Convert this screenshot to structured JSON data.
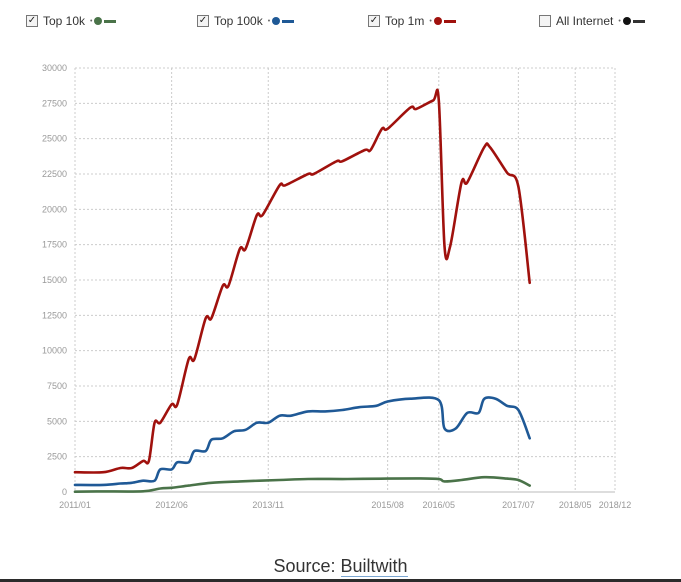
{
  "legend": [
    {
      "label": "Top 10k",
      "checked": true,
      "color": "#4a7349"
    },
    {
      "label": "Top 100k",
      "checked": true,
      "color": "#1f5996"
    },
    {
      "label": "Top 1m",
      "checked": true,
      "color": "#a0110d"
    },
    {
      "label": "All Internet",
      "checked": false,
      "color": "#333333"
    }
  ],
  "source": {
    "prefix": "Source:",
    "link": "Builtwith"
  },
  "chart_data": {
    "type": "line",
    "ylim": [
      0,
      30000
    ],
    "yticks": [
      "0",
      "2500",
      "5000",
      "7500",
      "10000",
      "12500",
      "15000",
      "17500",
      "20000",
      "22500",
      "25000",
      "27500",
      "30000"
    ],
    "xticks": [
      "2011/01",
      "2012/06",
      "2013/11",
      "2015/08",
      "2016/05",
      "2017/07",
      "2018/05",
      "2018/12"
    ],
    "grid": true,
    "series": [
      {
        "name": "Top 1m",
        "color": "#a0110d",
        "points": [
          [
            "2011/01",
            1400
          ],
          [
            "2011/06",
            1400
          ],
          [
            "2011/09",
            1700
          ],
          [
            "2011/11",
            1700
          ],
          [
            "2012/01",
            2200
          ],
          [
            "2012/02",
            2200
          ],
          [
            "2012/03",
            4900
          ],
          [
            "2012/04",
            4900
          ],
          [
            "2012/06",
            6200
          ],
          [
            "2012/07",
            6200
          ],
          [
            "2012/09",
            9400
          ],
          [
            "2012/10",
            9400
          ],
          [
            "2012/12",
            12300
          ],
          [
            "2013/01",
            12300
          ],
          [
            "2013/03",
            14600
          ],
          [
            "2013/04",
            14600
          ],
          [
            "2013/06",
            17200
          ],
          [
            "2013/07",
            17200
          ],
          [
            "2013/09",
            19600
          ],
          [
            "2013/10",
            19600
          ],
          [
            "2014/01",
            21700
          ],
          [
            "2014/02",
            21700
          ],
          [
            "2014/06",
            22500
          ],
          [
            "2014/07",
            22500
          ],
          [
            "2014/11",
            23400
          ],
          [
            "2014/12",
            23400
          ],
          [
            "2015/04",
            24200
          ],
          [
            "2015/05",
            24200
          ],
          [
            "2015/07",
            25700
          ],
          [
            "2015/08",
            25700
          ],
          [
            "2015/12",
            27200
          ],
          [
            "2016/01",
            27100
          ],
          [
            "2016/04",
            27700
          ],
          [
            "2016/05",
            27700
          ],
          [
            "2016/06",
            17400
          ],
          [
            "2016/07",
            17400
          ],
          [
            "2016/09",
            21900
          ],
          [
            "2016/10",
            21900
          ],
          [
            "2017/01",
            24400
          ],
          [
            "2017/02",
            24400
          ],
          [
            "2017/05",
            22600
          ],
          [
            "2017/07",
            21600
          ],
          [
            "2017/09",
            14800
          ]
        ]
      },
      {
        "name": "Top 100k",
        "color": "#1f5996",
        "points": [
          [
            "2011/01",
            500
          ],
          [
            "2011/06",
            500
          ],
          [
            "2011/09",
            600
          ],
          [
            "2011/11",
            650
          ],
          [
            "2012/01",
            800
          ],
          [
            "2012/03",
            800
          ],
          [
            "2012/04",
            1600
          ],
          [
            "2012/06",
            1600
          ],
          [
            "2012/07",
            2100
          ],
          [
            "2012/09",
            2100
          ],
          [
            "2012/10",
            2900
          ],
          [
            "2012/12",
            2900
          ],
          [
            "2013/01",
            3700
          ],
          [
            "2013/03",
            3800
          ],
          [
            "2013/05",
            4300
          ],
          [
            "2013/07",
            4400
          ],
          [
            "2013/09",
            4900
          ],
          [
            "2013/11",
            4900
          ],
          [
            "2014/01",
            5400
          ],
          [
            "2014/03",
            5400
          ],
          [
            "2014/06",
            5700
          ],
          [
            "2014/09",
            5700
          ],
          [
            "2014/12",
            5800
          ],
          [
            "2015/03",
            6000
          ],
          [
            "2015/06",
            6100
          ],
          [
            "2015/08",
            6400
          ],
          [
            "2015/12",
            6600
          ],
          [
            "2016/05",
            6500
          ],
          [
            "2016/06",
            4500
          ],
          [
            "2016/08",
            4500
          ],
          [
            "2016/10",
            5600
          ],
          [
            "2016/12",
            5600
          ],
          [
            "2017/01",
            6600
          ],
          [
            "2017/03",
            6600
          ],
          [
            "2017/05",
            6100
          ],
          [
            "2017/07",
            5800
          ],
          [
            "2017/09",
            3800
          ]
        ]
      },
      {
        "name": "Top 10k",
        "color": "#4a7349",
        "points": [
          [
            "2011/01",
            20
          ],
          [
            "2011/06",
            40
          ],
          [
            "2012/01",
            50
          ],
          [
            "2012/04",
            250
          ],
          [
            "2012/06",
            300
          ],
          [
            "2012/09",
            450
          ],
          [
            "2013/01",
            650
          ],
          [
            "2013/06",
            750
          ],
          [
            "2014/01",
            850
          ],
          [
            "2014/06",
            920
          ],
          [
            "2015/01",
            920
          ],
          [
            "2015/08",
            950
          ],
          [
            "2016/01",
            960
          ],
          [
            "2016/05",
            920
          ],
          [
            "2016/06",
            750
          ],
          [
            "2016/09",
            850
          ],
          [
            "2017/01",
            1050
          ],
          [
            "2017/05",
            950
          ],
          [
            "2017/07",
            850
          ],
          [
            "2017/09",
            450
          ]
        ]
      }
    ]
  }
}
